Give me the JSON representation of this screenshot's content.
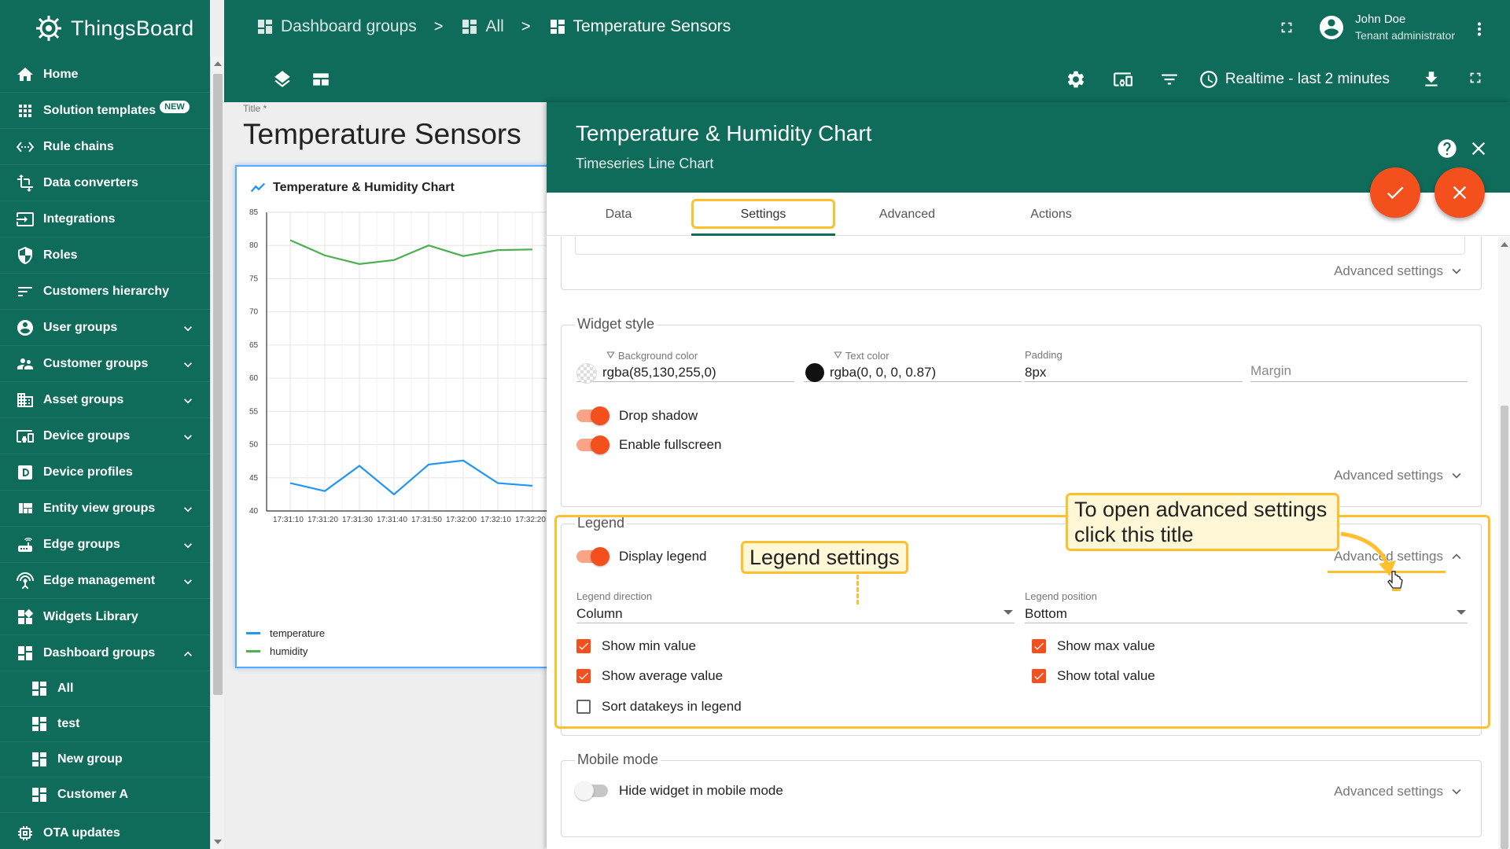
{
  "app": {
    "name": "ThingsBoard"
  },
  "sidebar": {
    "items": [
      {
        "label": "Home",
        "icon": "home-icon"
      },
      {
        "label": "Solution templates",
        "icon": "apps-icon",
        "badge": "NEW"
      },
      {
        "label": "Rule chains",
        "icon": "settings-ethernet-icon"
      },
      {
        "label": "Data converters",
        "icon": "transform-icon"
      },
      {
        "label": "Integrations",
        "icon": "input-icon"
      },
      {
        "label": "Roles",
        "icon": "security-icon"
      },
      {
        "label": "Customers hierarchy",
        "icon": "sort-icon"
      },
      {
        "label": "User groups",
        "icon": "account-circle-icon",
        "expandable": true
      },
      {
        "label": "Customer groups",
        "icon": "supervisor-account-icon",
        "expandable": true
      },
      {
        "label": "Asset groups",
        "icon": "domain-icon",
        "expandable": true
      },
      {
        "label": "Device groups",
        "icon": "devices-other-icon",
        "expandable": true
      },
      {
        "label": "Device profiles",
        "icon": "device-profile-icon"
      },
      {
        "label": "Entity view groups",
        "icon": "view-quilt-icon",
        "expandable": true
      },
      {
        "label": "Edge groups",
        "icon": "router-icon",
        "expandable": true
      },
      {
        "label": "Edge management",
        "icon": "settings-input-antenna-icon",
        "expandable": true
      },
      {
        "label": "Widgets Library",
        "icon": "widgets-icon"
      },
      {
        "label": "Dashboard groups",
        "icon": "dashboard-icon",
        "expanded": true
      }
    ],
    "sub_items": [
      {
        "label": "All"
      },
      {
        "label": "test"
      },
      {
        "label": "New group"
      },
      {
        "label": "Customer A"
      }
    ],
    "bottom_item": {
      "label": "OTA updates",
      "icon": "memory-icon"
    }
  },
  "breadcrumb": [
    {
      "label": "Dashboard groups"
    },
    {
      "label": "All"
    },
    {
      "label": "Temperature Sensors"
    }
  ],
  "breadcrumb_separator": ">",
  "user": {
    "name": "John Doe",
    "role": "Tenant administrator"
  },
  "toolbar": {
    "realtime_label": "Realtime - last 2 minutes"
  },
  "dashboard": {
    "title_label": "Title *",
    "title": "Temperature Sensors",
    "widget": {
      "title": "Temperature & Humidity Chart",
      "chart_data": {
        "type": "line",
        "x": [
          "17:31:10",
          "17:31:20",
          "17:31:30",
          "17:31:40",
          "17:31:50",
          "17:32:00",
          "17:32:10",
          "17:32:20"
        ],
        "ylim": [
          40,
          85
        ],
        "yticks": [
          40,
          45,
          50,
          55,
          60,
          65,
          70,
          75,
          80,
          85
        ],
        "grid": true,
        "legend_position": "bottom",
        "series": [
          {
            "name": "temperature",
            "color": "#2196f3",
            "values": [
              44.2,
              43,
              46.8,
              42.5,
              47,
              47.6,
              44.2,
              43.8
            ]
          },
          {
            "name": "humidity",
            "color": "#4caf50",
            "values": [
              80.8,
              78.5,
              77.2,
              77.8,
              80,
              78.4,
              79.3,
              79.4
            ]
          }
        ]
      }
    }
  },
  "editor": {
    "title": "Temperature & Humidity Chart",
    "subtitle": "Timeseries Line Chart",
    "tabs": [
      "Data",
      "Settings",
      "Advanced",
      "Actions"
    ],
    "active_tab": "Settings",
    "advanced_settings_label": "Advanced settings",
    "widget_style": {
      "title": "Widget style",
      "background_color_label": "Background color",
      "background_color_value": "rgba(85,130,255,0)",
      "text_color_label": "Text color",
      "text_color_value": "rgba(0, 0, 0, 0.87)",
      "padding_label": "Padding",
      "padding_value": "8px",
      "margin_placeholder": "Margin",
      "drop_shadow_label": "Drop shadow",
      "enable_fullscreen_label": "Enable fullscreen"
    },
    "legend": {
      "title": "Legend",
      "display_legend_label": "Display legend",
      "direction_label": "Legend direction",
      "direction_value": "Column",
      "position_label": "Legend position",
      "position_value": "Bottom",
      "show_min": "Show min value",
      "show_max": "Show max value",
      "show_avg": "Show average value",
      "show_total": "Show total value",
      "sort_keys": "Sort datakeys in legend"
    },
    "mobile_mode": {
      "title": "Mobile mode",
      "hide_label": "Hide widget in mobile mode"
    }
  },
  "annotations": {
    "legend_settings": "Legend settings",
    "open_advanced_line1": "To open advanced settings",
    "open_advanced_line2": "click this title"
  },
  "colors": {
    "primary": "#0f6b5a",
    "accent": "#f4501e",
    "highlight": "#ffbf2e"
  }
}
